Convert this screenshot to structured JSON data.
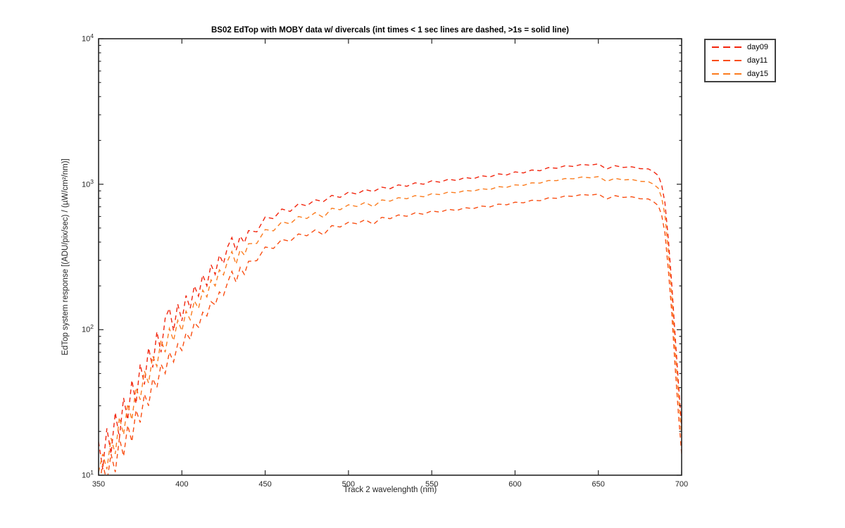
{
  "chart_data": {
    "type": "line",
    "title": "BS02 EdTop with MOBY data w/ divercals (int times < 1 sec lines are dashed, >1s = solid line)",
    "xlabel": "Track 2 wavelenghth (nm)",
    "ylabel": "EdTop system response [(ADU/pix/sec) / (µW/cm²/nm)]",
    "xlim": [
      350,
      700
    ],
    "ylim": [
      10,
      10000
    ],
    "x_scale": "linear",
    "y_scale": "log",
    "grid": false,
    "legend_position": "outside-top-right",
    "line_style": "dashed",
    "axis_color": "#262626",
    "x_ticks": [
      350,
      400,
      450,
      500,
      550,
      600,
      650,
      700
    ],
    "y_ticks": [
      {
        "base": 10,
        "exp": 1
      },
      {
        "base": 10,
        "exp": 2
      },
      {
        "base": 10,
        "exp": 3
      },
      {
        "base": 10,
        "exp": 4
      }
    ],
    "x": [
      350,
      352.5,
      355,
      357.5,
      360,
      362.5,
      365,
      367.5,
      370,
      372.5,
      375,
      377.5,
      380,
      382.5,
      385,
      387.5,
      390,
      392.5,
      395,
      397.5,
      400,
      402.5,
      405,
      407.5,
      410,
      412.5,
      415,
      417.5,
      420,
      422.5,
      425,
      427.5,
      430,
      432.5,
      435,
      437.5,
      440,
      445,
      450,
      455,
      460,
      465,
      470,
      475,
      480,
      485,
      490,
      495,
      500,
      505,
      510,
      515,
      520,
      525,
      530,
      535,
      540,
      545,
      550,
      555,
      560,
      565,
      570,
      575,
      580,
      585,
      590,
      595,
      600,
      605,
      610,
      615,
      620,
      625,
      630,
      635,
      640,
      645,
      650,
      655,
      660,
      665,
      670,
      675,
      680,
      683,
      686,
      688,
      690,
      692,
      694,
      696,
      698,
      700
    ],
    "series": [
      {
        "name": "day09",
        "color": "#f2250d",
        "values": [
          17,
          11,
          21,
          14,
          27,
          18,
          34,
          24,
          45,
          31,
          58,
          42,
          75,
          55,
          97,
          70,
          120,
          140,
          98,
          150,
          115,
          172,
          140,
          200,
          170,
          238,
          200,
          280,
          240,
          325,
          285,
          372,
          430,
          350,
          440,
          395,
          480,
          470,
          595,
          580,
          675,
          650,
          735,
          710,
          782,
          760,
          838,
          812,
          882,
          855,
          918,
          890,
          955,
          932,
          990,
          968,
          1022,
          1000,
          1055,
          1032,
          1082,
          1060,
          1112,
          1090,
          1142,
          1122,
          1178,
          1158,
          1215,
          1196,
          1252,
          1238,
          1300,
          1288,
          1340,
          1325,
          1368,
          1350,
          1380,
          1270,
          1342,
          1305,
          1318,
          1280,
          1275,
          1222,
          1146,
          992,
          745,
          420,
          212,
          95,
          44,
          21.5
        ]
      },
      {
        "name": "day11",
        "color": "#f94d11",
        "values": [
          8,
          12,
          9,
          14,
          10.5,
          18,
          13.5,
          22,
          17,
          28,
          23,
          36,
          30,
          46,
          40,
          58,
          50,
          70,
          60,
          80,
          72,
          95,
          86,
          112,
          104,
          132,
          124,
          156,
          148,
          182,
          172,
          212,
          252,
          212,
          268,
          240,
          295,
          298,
          370,
          362,
          418,
          405,
          455,
          442,
          485,
          448,
          520,
          508,
          548,
          535,
          570,
          530,
          592,
          580,
          615,
          602,
          635,
          622,
          655,
          642,
          672,
          660,
          690,
          680,
          708,
          698,
          730,
          722,
          752,
          745,
          775,
          770,
          805,
          800,
          830,
          825,
          850,
          840,
          856,
          790,
          835,
          812,
          820,
          795,
          792,
          760,
          712,
          615,
          462,
          258,
          135,
          58,
          27,
          14
        ]
      },
      {
        "name": "day15",
        "color": "#fb7c1f",
        "values": [
          10.5,
          14,
          11,
          18,
          14,
          25,
          19,
          31,
          24,
          40,
          33,
          52,
          43,
          66,
          56,
          85,
          70,
          102,
          84,
          116,
          98,
          134,
          117,
          158,
          140,
          187,
          168,
          220,
          200,
          258,
          238,
          298,
          345,
          282,
          355,
          325,
          390,
          392,
          488,
          478,
          552,
          534,
          600,
          581,
          638,
          590,
          684,
          668,
          722,
          703,
          750,
          700,
          780,
          765,
          808,
          795,
          835,
          820,
          860,
          848,
          884,
          872,
          906,
          896,
          930,
          920,
          962,
          952,
          990,
          982,
          1022,
          1018,
          1060,
          1058,
          1094,
          1090,
          1120,
          1108,
          1128,
          1045,
          1098,
          1070,
          1078,
          1046,
          1042,
          1002,
          938,
          810,
          612,
          342,
          176,
          77,
          37,
          18.5
        ]
      }
    ]
  }
}
